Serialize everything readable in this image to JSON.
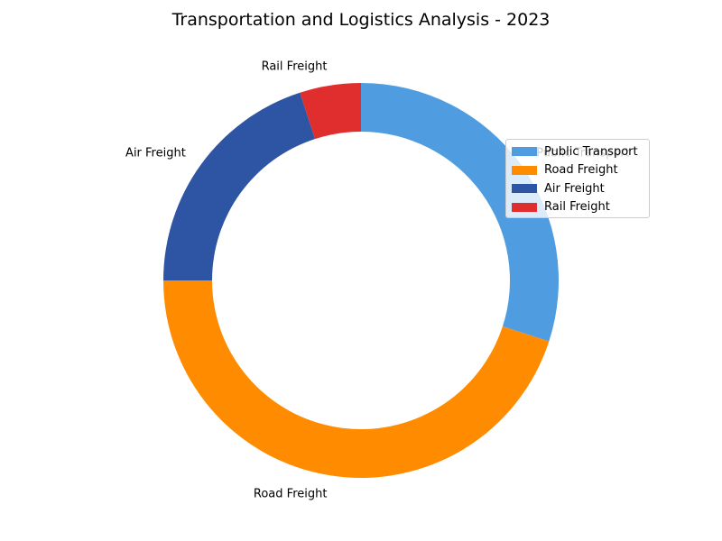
{
  "chart_data": {
    "type": "pie",
    "style": "donut",
    "title": "Transportation and Logistics Analysis - 2023",
    "categories": [
      "Public Transport",
      "Road Freight",
      "Air Freight",
      "Rail Freight"
    ],
    "values": [
      30,
      45,
      20,
      5
    ],
    "colors": [
      "#4F9DE0",
      "#FF8C00",
      "#2E54A4",
      "#E02E2E"
    ],
    "start_angle_deg": 90,
    "direction": "clockwise",
    "legend": {
      "position": "right",
      "entries": [
        "Public Transport",
        "Road Freight",
        "Air Freight",
        "Rail Freight"
      ]
    }
  }
}
